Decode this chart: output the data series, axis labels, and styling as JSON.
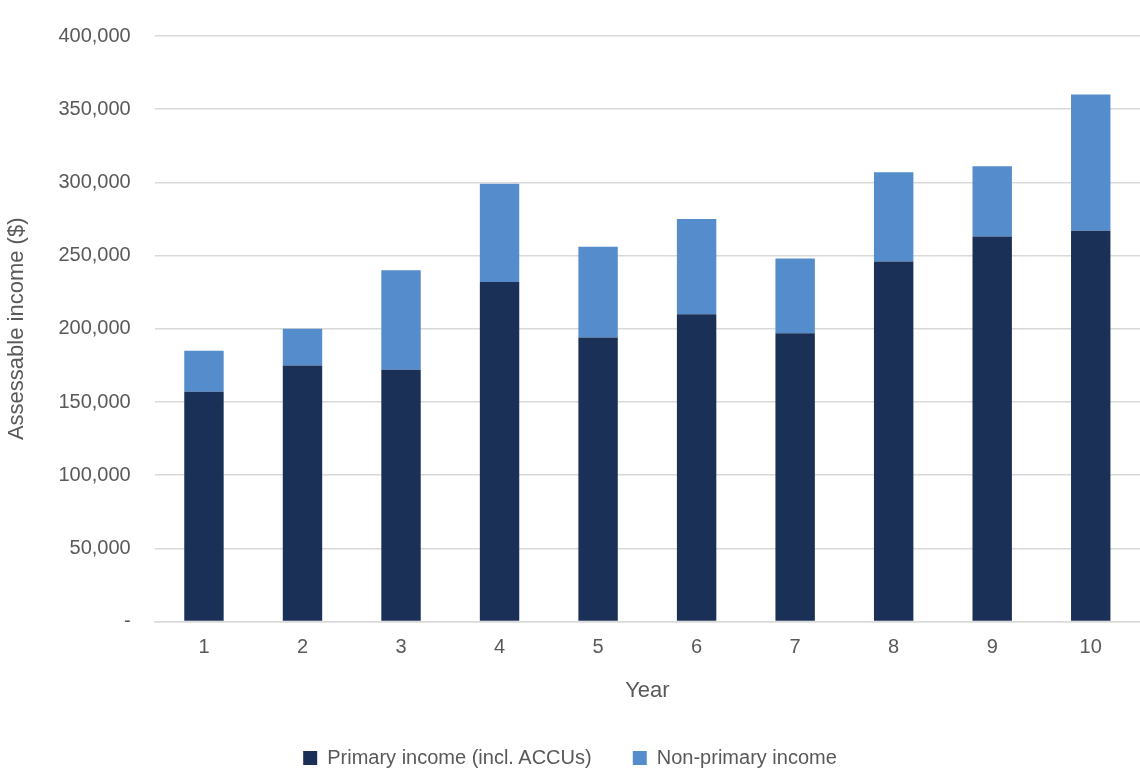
{
  "chart_data": {
    "type": "bar",
    "stacked": true,
    "xlabel": "Year",
    "ylabel": "Assessable income ($)",
    "categories": [
      "1",
      "2",
      "3",
      "4",
      "5",
      "6",
      "7",
      "8",
      "9",
      "10"
    ],
    "series": [
      {
        "name": "Primary income (incl. ACCUs)",
        "color": "#1b3057",
        "values": [
          157000,
          175000,
          172000,
          232000,
          194000,
          210000,
          197000,
          246000,
          263000,
          267000
        ]
      },
      {
        "name": "Non-primary income",
        "color": "#558ccb",
        "values": [
          28000,
          25000,
          68000,
          67000,
          62000,
          65000,
          51000,
          61000,
          48000,
          93000
        ]
      }
    ],
    "ylim": [
      0,
      400000
    ],
    "yticks": [
      {
        "value": 0,
        "label": "-"
      },
      {
        "value": 50000,
        "label": "50,000"
      },
      {
        "value": 100000,
        "label": "100,000"
      },
      {
        "value": 150000,
        "label": "150,000"
      },
      {
        "value": 200000,
        "label": "200,000"
      },
      {
        "value": 250000,
        "label": "250,000"
      },
      {
        "value": 300000,
        "label": "300,000"
      },
      {
        "value": 350000,
        "label": "350,000"
      },
      {
        "value": 400000,
        "label": "400,000"
      }
    ],
    "grid": "y",
    "legend": "bottom"
  }
}
